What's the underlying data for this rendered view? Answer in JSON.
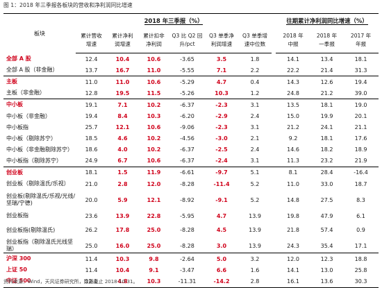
{
  "title": "图 1：2018 年三季报各板块的营收和净利润同比增速",
  "source": "资料来源：Wind，天风证券研究所，数据截止 2018-10-31。",
  "header": {
    "section_label": "板块",
    "group1": "2018 年三季报（%）",
    "group2": "往期累计净利润同比增速（%）",
    "cols": [
      [
        "累计营收",
        "增速"
      ],
      [
        "累计净利",
        "润增速"
      ],
      [
        "累计扣非",
        "净利润"
      ],
      [
        "Q3 比 Q2 回",
        "升/pct"
      ],
      [
        "Q3 单季净",
        "利润增速"
      ],
      [
        "Q3 单季增",
        "速中位数"
      ],
      [
        "2018 年",
        "中报"
      ],
      [
        "2018 年",
        "一季报"
      ],
      [
        "2017 年",
        "年报"
      ]
    ]
  },
  "groups": [
    {
      "rows": [
        {
          "label": "全部 A 股",
          "red": true,
          "h": 1,
          "v": [
            "12.4",
            "10.4",
            "10.6",
            "-3.65",
            "3.5",
            "1.8",
            "14.1",
            "13.4",
            "18.1"
          ]
        },
        {
          "label": "全部 A 股（非金融）",
          "red": false,
          "h": 1,
          "v": [
            "13.7",
            "16.7",
            "11.0",
            "-5.55",
            "7.1",
            "2.2",
            "22.2",
            "21.4",
            "31.3"
          ]
        }
      ]
    },
    {
      "rows": [
        {
          "label": "主板",
          "red": true,
          "h": 1,
          "v": [
            "11.0",
            "11.0",
            "10.6",
            "-5.29",
            "4.7",
            "0.4",
            "14.3",
            "12.6",
            "19.4"
          ]
        },
        {
          "label": "主板（非金融）",
          "red": false,
          "h": 1,
          "v": [
            "12.8",
            "19.5",
            "11.5",
            "-5.26",
            "10.3",
            "1.2",
            "24.8",
            "21.2",
            "39.0"
          ]
        }
      ]
    },
    {
      "rows": [
        {
          "label": "中小板",
          "red": true,
          "h": 1,
          "v": [
            "19.1",
            "7.1",
            "10.2",
            "-6.37",
            "-2.3",
            "3.1",
            "13.5",
            "18.1",
            "19.0"
          ]
        },
        {
          "label": "中小板（非金融）",
          "red": false,
          "h": 1,
          "v": [
            "19.4",
            "8.4",
            "10.3",
            "-6.20",
            "-2.9",
            "2.4",
            "15.0",
            "19.9",
            "20.1"
          ]
        },
        {
          "label": "中小板指",
          "red": false,
          "h": 1,
          "v": [
            "25.7",
            "12.1",
            "10.6",
            "-9.06",
            "-2.3",
            "3.1",
            "21.2",
            "24.1",
            "21.1"
          ]
        },
        {
          "label": "中小板（剔除苏宁）",
          "red": false,
          "h": 1,
          "v": [
            "18.5",
            "4.6",
            "10.2",
            "-4.56",
            "-3.0",
            "2.1",
            "9.2",
            "18.1",
            "17.6"
          ]
        },
        {
          "label": "中小板（非金融剔除苏宁）",
          "red": false,
          "h": 1,
          "v": [
            "18.6",
            "4.0",
            "10.2",
            "-6.37",
            "-2.5",
            "2.4",
            "14.6",
            "18.2",
            "18.9"
          ]
        },
        {
          "label": "中小板指（剔除苏宁）",
          "red": false,
          "h": 1,
          "v": [
            "24.9",
            "6.7",
            "10.6",
            "-6.37",
            "-2.4",
            "3.1",
            "11.3",
            "23.2",
            "21.9"
          ]
        }
      ]
    },
    {
      "rows": [
        {
          "label": "创业板",
          "red": true,
          "h": 1,
          "v": [
            "18.1",
            "1.5",
            "11.9",
            "-6.61",
            "-9.7",
            "5.1",
            "8.1",
            "28.4",
            "-16.4"
          ]
        },
        {
          "label": "创业板（剔除温氏/乐视）",
          "red": false,
          "h": 1,
          "v": [
            "21.0",
            "2.8",
            "12.0",
            "-8.28",
            "-11.4",
            "5.2",
            "11.0",
            "33.0",
            "18.7"
          ]
        },
        {
          "label": "创业板(剔除温氏/乐视/光线/坚瑞/宁德)",
          "red": false,
          "h": 3,
          "v": [
            "20.0",
            "5.9",
            "12.1",
            "-8.92",
            "-9.1",
            "5.2",
            "14.8",
            "27.5",
            "8.3"
          ]
        },
        {
          "label": "创业板指",
          "red": false,
          "h": 1,
          "v": [
            "23.6",
            "13.9",
            "22.8",
            "-5.95",
            "4.7",
            "13.9",
            "19.8",
            "47.9",
            "6.1"
          ]
        },
        {
          "label": "创业板指(剔除温氏)",
          "red": false,
          "h": 2,
          "v": [
            "26.2",
            "17.8",
            "25.0",
            "-8.28",
            "4.5",
            "13.9",
            "21.8",
            "57.4",
            "0.9"
          ]
        },
        {
          "label": "创业板指（剔除温氏光线坚瑞）",
          "red": false,
          "h": 1,
          "v": [
            "25.0",
            "16.0",
            "25.0",
            "-8.28",
            "3.0",
            "13.9",
            "24.3",
            "35.4",
            "17.1"
          ]
        }
      ]
    },
    {
      "rows": [
        {
          "label": "沪深 300",
          "red": true,
          "h": 1,
          "v": [
            "11.4",
            "10.3",
            "9.8",
            "-2.64",
            "5.0",
            "3.2",
            "12.0",
            "12.3",
            "18.8"
          ]
        },
        {
          "label": "上证 50",
          "red": true,
          "h": 1,
          "v": [
            "11.4",
            "10.4",
            "9.1",
            "-3.47",
            "6.6",
            "1.6",
            "14.1",
            "13.0",
            "25.8"
          ]
        },
        {
          "label": "中证 500",
          "red": true,
          "h": 1,
          "v": [
            "12.1",
            "4.8",
            "10.3",
            "-11.31",
            "-14.2",
            "2.8",
            "16.1",
            "13.6",
            "30.3"
          ]
        }
      ]
    }
  ],
  "colors": {
    "accent_red": "#d0021b",
    "rule": "#000000"
  }
}
